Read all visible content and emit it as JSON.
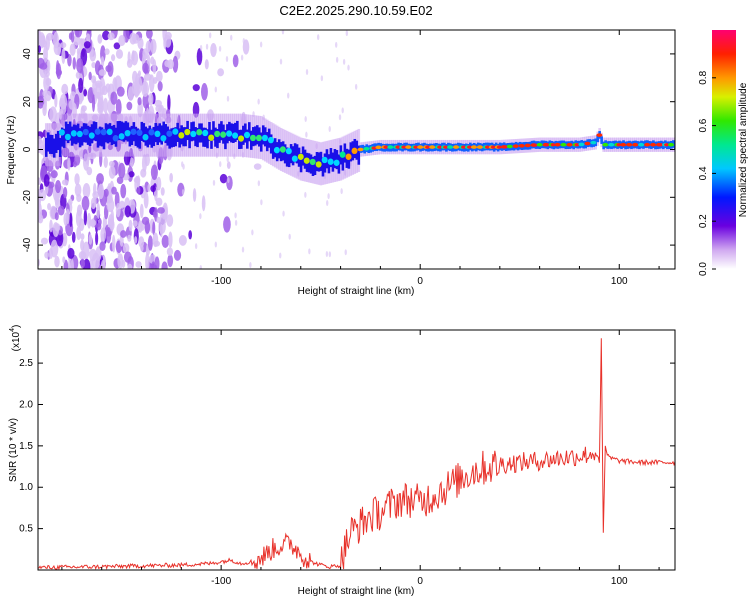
{
  "title": "C2E2.2025.290.10.59.E02",
  "chart_data": [
    {
      "type": "heatmap",
      "xlabel": "Height of straight line (km)",
      "ylabel": "Frequency (Hz)",
      "xlim": [
        -192,
        128
      ],
      "ylim": [
        -50,
        50
      ],
      "x_ticks": [
        -100,
        0,
        100
      ],
      "y_ticks": [
        -40,
        -20,
        0,
        20,
        40
      ],
      "colorbar": {
        "label": "Normalized spectral amplitude",
        "range": [
          0,
          1
        ],
        "ticks": [
          0.0,
          0.2,
          0.4,
          0.6,
          0.8
        ]
      },
      "ridge": {
        "x": [
          -180,
          -160,
          -140,
          -120,
          -100,
          -90,
          -80,
          -70,
          -60,
          -50,
          -40,
          -30,
          -20,
          -10,
          0,
          20,
          40,
          60,
          80,
          88,
          90,
          92,
          100,
          128
        ],
        "freq": [
          6,
          6,
          6,
          6,
          6,
          6,
          5,
          0,
          -4,
          -6,
          -4,
          0,
          1,
          1,
          1,
          1,
          1,
          2,
          2,
          3,
          6,
          2,
          2,
          2
        ]
      }
    },
    {
      "type": "line",
      "xlabel": "Height of straight line (km)",
      "ylabel": "SNR (10 * v/v)",
      "y_multiplier": "(x10",
      "y_multiplier_exp": "4",
      "y_multiplier_close": ")",
      "xlim": [
        -192,
        128
      ],
      "ylim": [
        0,
        2.9
      ],
      "x_ticks": [
        -100,
        0,
        100
      ],
      "y_ticks": [
        0.5,
        1.0,
        1.5,
        2.0,
        2.5
      ],
      "series": [
        {
          "name": "SNR",
          "color": "#e8322b",
          "x": [
            -192,
            -160,
            -140,
            -120,
            -105,
            -95,
            -90,
            -85,
            -80,
            -75,
            -70,
            -65,
            -60,
            -55,
            -50,
            -45,
            -40,
            -38,
            -35,
            -30,
            -25,
            -20,
            -15,
            -10,
            -5,
            0,
            5,
            10,
            15,
            20,
            25,
            30,
            35,
            40,
            50,
            60,
            70,
            80,
            85,
            88,
            90,
            91,
            92,
            93,
            94,
            96,
            100,
            110,
            128
          ],
          "values": [
            0.03,
            0.04,
            0.05,
            0.06,
            0.08,
            0.12,
            0.08,
            0.1,
            0.14,
            0.24,
            0.3,
            0.32,
            0.2,
            0.1,
            0.06,
            0.04,
            0.06,
            0.25,
            0.45,
            0.55,
            0.65,
            0.7,
            0.78,
            0.85,
            0.85,
            0.82,
            0.88,
            0.95,
            1.02,
            1.1,
            1.18,
            1.22,
            1.25,
            1.28,
            1.3,
            1.32,
            1.35,
            1.38,
            1.4,
            1.42,
            1.3,
            2.8,
            0.45,
            1.5,
            1.38,
            1.35,
            1.32,
            1.3,
            1.3
          ]
        }
      ]
    }
  ],
  "colors": {
    "line": "#e8322b",
    "frame": "#000000",
    "background": "#ffffff"
  }
}
